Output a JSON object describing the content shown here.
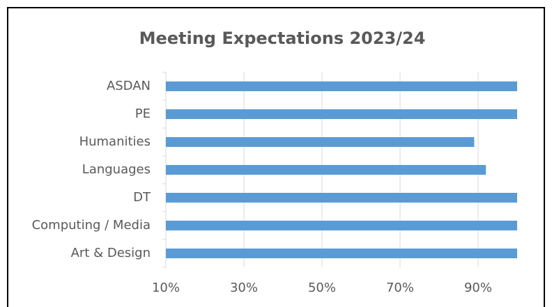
{
  "chart_data": {
    "type": "bar",
    "orientation": "horizontal",
    "title": "Meeting Expectations 2023/24",
    "categories": [
      "ASDAN",
      "PE",
      "Humanities",
      "Languages",
      "DT",
      "Computing / Media",
      "Art & Design"
    ],
    "values": [
      100,
      100,
      89,
      92,
      100,
      100,
      100
    ],
    "color": "#5b9bd5",
    "xlim": [
      10,
      100
    ],
    "xticks": [
      {
        "value": 10,
        "label": "10%"
      },
      {
        "value": 30,
        "label": "30%"
      },
      {
        "value": 50,
        "label": "50%"
      },
      {
        "value": 70,
        "label": "70%"
      },
      {
        "value": 90,
        "label": "90%"
      }
    ],
    "grid": true
  }
}
